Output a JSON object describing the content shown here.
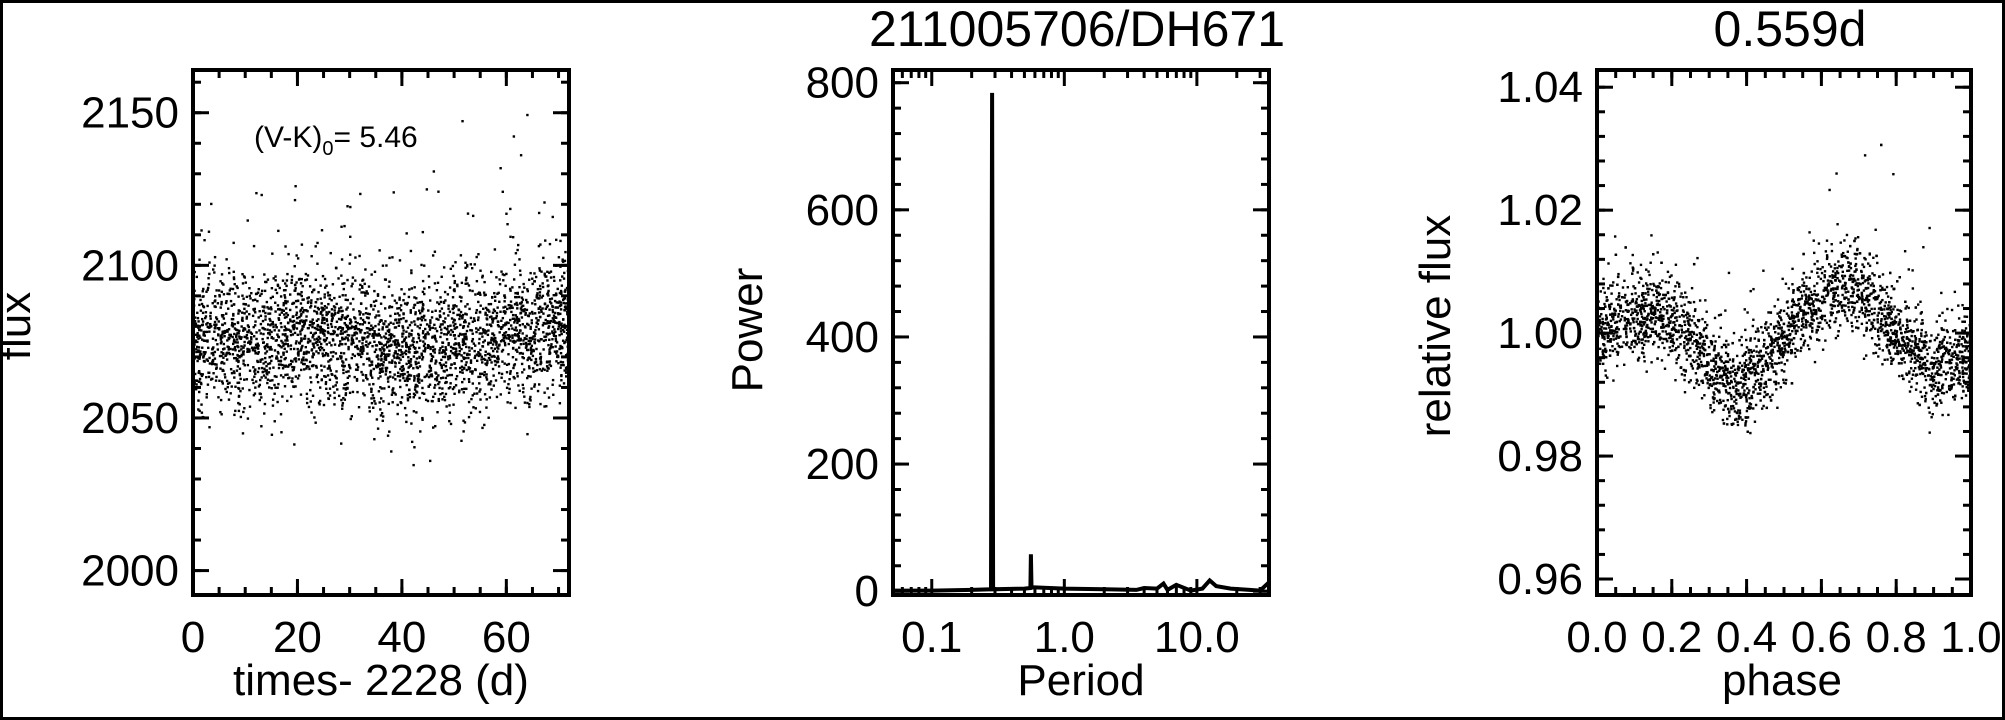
{
  "colors": {
    "ink": "#000000",
    "background": "#ffffff"
  },
  "chart_data": [
    {
      "type": "scatter",
      "title": "",
      "xlabel": "times- 2228 (d)",
      "ylabel": "flux",
      "xlim": [
        0,
        72
      ],
      "ylim": [
        1992,
        2164
      ],
      "xticks": [
        "0",
        "20",
        "40",
        "60"
      ],
      "xtick_values": [
        0,
        20,
        40,
        60
      ],
      "yticks": [
        "2000",
        "2050",
        "2100",
        "2150"
      ],
      "ytick_values": [
        2000,
        2050,
        2100,
        2150
      ],
      "annotation": {
        "prefix": "(V-K)",
        "subscript": "0",
        "suffix": "= 5.46"
      },
      "trend": {
        "x": [
          0,
          10,
          20,
          30,
          40,
          50,
          60,
          72
        ],
        "y": [
          2076,
          2074,
          2077,
          2076,
          2071,
          2074,
          2078,
          2080
        ]
      },
      "scatter_sigma": 11,
      "n_points": 3200
    },
    {
      "type": "line",
      "title": "211005706/DH671",
      "xlabel": "Period",
      "ylabel": "Power",
      "xscale": "log",
      "xlim": [
        0.051,
        35
      ],
      "ylim": [
        -6,
        820
      ],
      "xticks": [
        "0.1",
        "1.0",
        "10.0"
      ],
      "xtick_values": [
        0.1,
        1,
        10
      ],
      "yticks": [
        "0",
        "200",
        "400",
        "600",
        "800"
      ],
      "ytick_values": [
        0,
        200,
        400,
        600,
        800
      ],
      "x": [
        0.051,
        0.1,
        0.2,
        0.28,
        0.285,
        0.29,
        0.5,
        0.555,
        0.56,
        0.565,
        0.6,
        1.0,
        2.0,
        3.5,
        4.0,
        5.0,
        5.6,
        6.0,
        7.0,
        9.0,
        11.0,
        12.5,
        14.0,
        18.0,
        25.0,
        30.0,
        35.0
      ],
      "y": [
        1,
        1,
        2,
        3,
        784,
        3,
        4,
        5,
        58,
        6,
        6,
        4,
        3,
        2,
        5,
        4,
        12,
        2,
        10,
        1,
        4,
        17,
        8,
        4,
        2,
        1,
        14
      ]
    },
    {
      "type": "scatter",
      "title": "0.559d",
      "xlabel": "phase",
      "ylabel": "relative flux",
      "xlim": [
        0,
        1
      ],
      "ylim": [
        0.9574,
        1.0428
      ],
      "xticks": [
        "0.0",
        "0.2",
        "0.4",
        "0.6",
        "0.8",
        "1.0"
      ],
      "xtick_values": [
        0,
        0.2,
        0.4,
        0.6,
        0.8,
        1.0
      ],
      "yticks": [
        "0.96",
        "0.98",
        "1.00",
        "1.02",
        "1.04"
      ],
      "ytick_values": [
        0.96,
        0.98,
        1.0,
        1.02,
        1.04
      ],
      "trend": {
        "x": [
          0,
          0.1,
          0.2,
          0.3,
          0.37,
          0.45,
          0.55,
          0.65,
          0.7,
          0.8,
          0.9,
          1.0
        ],
        "y": [
          1.0,
          1.003,
          1.003,
          0.995,
          0.991,
          0.995,
          1.003,
          1.008,
          1.007,
          1.0,
          0.994,
          0.996
        ]
      },
      "scatter_sigma": 0.0035,
      "n_points": 3000
    }
  ]
}
